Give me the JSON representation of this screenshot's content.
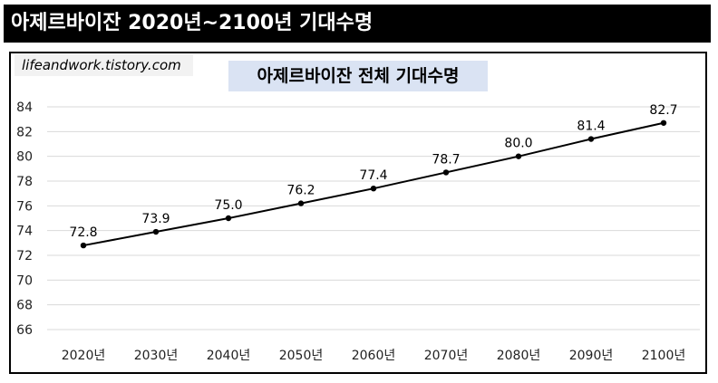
{
  "header": {
    "title": "아제르바이잔 2020년~2100년 기대수명"
  },
  "source_label": "lifeandwork.tistory.com",
  "chart_data": {
    "type": "line",
    "title": "아제르바이잔 전체 기대수명",
    "categories": [
      "2020년",
      "2030년",
      "2040년",
      "2050년",
      "2060년",
      "2070년",
      "2080년",
      "2090년",
      "2100년"
    ],
    "series": [
      {
        "values": [
          72.8,
          73.9,
          75.0,
          76.2,
          77.4,
          78.7,
          80.0,
          81.4,
          82.7
        ]
      }
    ],
    "data_labels": [
      "72.8",
      "73.9",
      "75.0",
      "76.2",
      "77.4",
      "78.7",
      "80.0",
      "81.4",
      "82.7"
    ],
    "ylim": [
      66,
      84
    ],
    "yticks": [
      66,
      68,
      70,
      72,
      74,
      76,
      78,
      80,
      82,
      84
    ],
    "grid": true,
    "legend": "none",
    "line_color": "#000000"
  }
}
